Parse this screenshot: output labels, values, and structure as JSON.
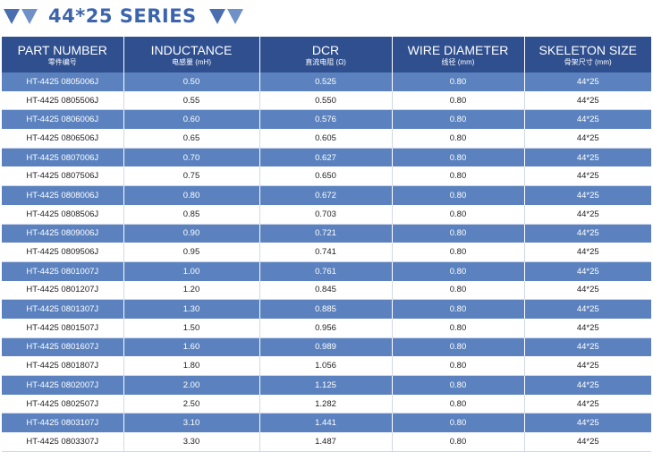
{
  "title": "44*25 SERIES",
  "headers": [
    {
      "en": "PART NUMBER",
      "zh": "零件编号"
    },
    {
      "en": "INDUCTANCE",
      "zh": "电感量 (mH)"
    },
    {
      "en": "DCR",
      "zh": "直流电阻 (Ω)"
    },
    {
      "en": "WIRE DIAMETER",
      "zh": "线径 (mm)"
    },
    {
      "en": "SKELETON SIZE",
      "zh": "骨架尺寸 (mm)"
    }
  ],
  "rows": [
    [
      "HT-4425 0805006J",
      "0.50",
      "0.525",
      "0.80",
      "44*25"
    ],
    [
      "HT-4425 0805506J",
      "0.55",
      "0.550",
      "0.80",
      "44*25"
    ],
    [
      "HT-4425 0806006J",
      "0.60",
      "0.576",
      "0.80",
      "44*25"
    ],
    [
      "HT-4425 0806506J",
      "0.65",
      "0.605",
      "0.80",
      "44*25"
    ],
    [
      "HT-4425 0807006J",
      "0.70",
      "0.627",
      "0.80",
      "44*25"
    ],
    [
      "HT-4425 0807506J",
      "0.75",
      "0.650",
      "0.80",
      "44*25"
    ],
    [
      "HT-4425 0808006J",
      "0.80",
      "0.672",
      "0.80",
      "44*25"
    ],
    [
      "HT-4425 0808506J",
      "0.85",
      "0.703",
      "0.80",
      "44*25"
    ],
    [
      "HT-4425 0809006J",
      "0.90",
      "0.721",
      "0.80",
      "44*25"
    ],
    [
      "HT-4425 0809506J",
      "0.95",
      "0.741",
      "0.80",
      "44*25"
    ],
    [
      "HT-4425 0801007J",
      "1.00",
      "0.761",
      "0.80",
      "44*25"
    ],
    [
      "HT-4425 0801207J",
      "1.20",
      "0.845",
      "0.80",
      "44*25"
    ],
    [
      "HT-4425 0801307J",
      "1.30",
      "0.885",
      "0.80",
      "44*25"
    ],
    [
      "HT-4425 0801507J",
      "1.50",
      "0.956",
      "0.80",
      "44*25"
    ],
    [
      "HT-4425 0801607J",
      "1.60",
      "0.989",
      "0.80",
      "44*25"
    ],
    [
      "HT-4425 0801807J",
      "1.80",
      "1.056",
      "0.80",
      "44*25"
    ],
    [
      "HT-4425 0802007J",
      "2.00",
      "1.125",
      "0.80",
      "44*25"
    ],
    [
      "HT-4425 0802507J",
      "2.50",
      "1.282",
      "0.80",
      "44*25"
    ],
    [
      "HT-4425 0803107J",
      "3.10",
      "1.441",
      "0.80",
      "44*25"
    ],
    [
      "HT-4425 0803307J",
      "3.30",
      "1.487",
      "0.80",
      "44*25"
    ]
  ]
}
